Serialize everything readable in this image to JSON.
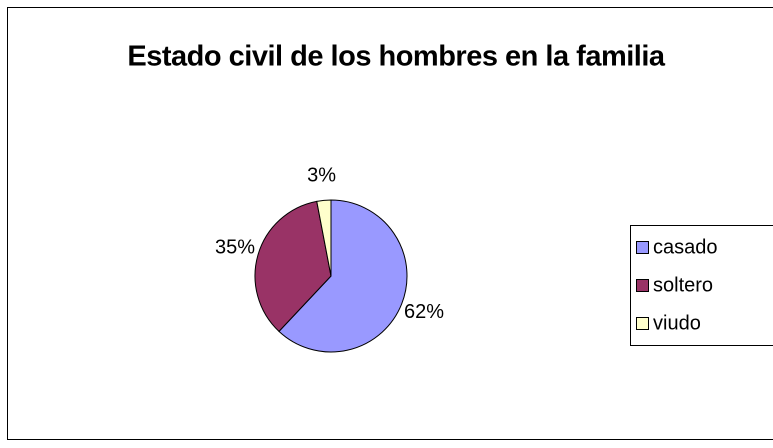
{
  "chart_data": {
    "type": "pie",
    "title": "Estado civil de los hombres en la familia",
    "categories": [
      "casado",
      "soltero",
      "viudo"
    ],
    "values": [
      62,
      35,
      3
    ],
    "value_labels": [
      "62%",
      "35%",
      "3%"
    ],
    "colors": [
      "#9999ff",
      "#993366",
      "#ffffcc"
    ],
    "legend": "right"
  }
}
